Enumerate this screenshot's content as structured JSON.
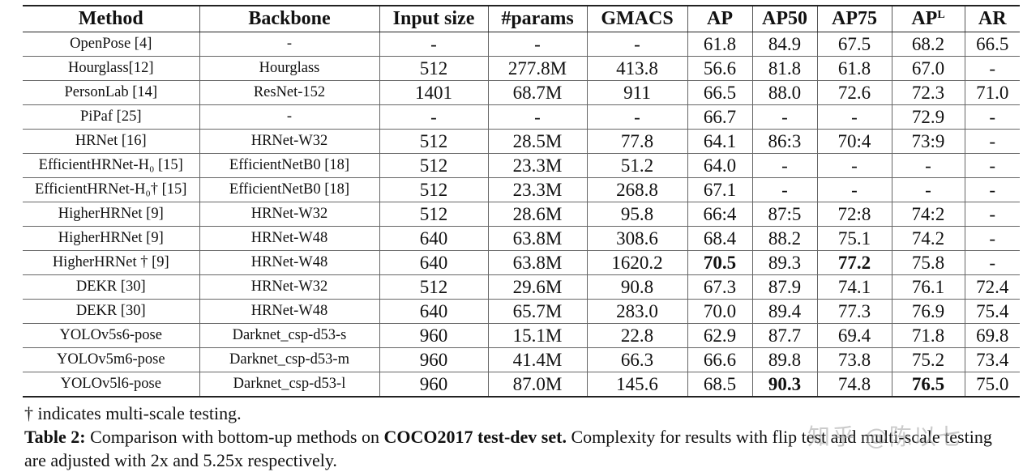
{
  "table": {
    "headers": [
      "Method",
      "Backbone",
      "Input size",
      "#params",
      "GMACS",
      "AP",
      "AP50",
      "AP75",
      "AP",
      "AR"
    ],
    "ap_l_superscript": "L",
    "rows": [
      {
        "cells": [
          "OpenPose [4]",
          "-",
          "-",
          "-",
          "-",
          "61.8",
          "84.9",
          "67.5",
          "68.2",
          "66.5"
        ],
        "bold": []
      },
      {
        "cells": [
          "Hourglass[12]",
          "Hourglass",
          "512",
          "277.8M",
          "413.8",
          "56.6",
          "81.8",
          "61.8",
          "67.0",
          "-"
        ],
        "bold": []
      },
      {
        "cells": [
          "PersonLab [14]",
          "ResNet-152",
          "1401",
          "68.7M",
          "911",
          "66.5",
          "88.0",
          "72.6",
          "72.3",
          "71.0"
        ],
        "bold": []
      },
      {
        "cells": [
          "PiPaf [25]",
          "-",
          "-",
          "-",
          "-",
          "66.7",
          "-",
          "-",
          "72.9",
          "-"
        ],
        "bold": []
      },
      {
        "cells": [
          "HRNet [16]",
          "HRNet-W32",
          "512",
          "28.5M",
          "77.8",
          "64.1",
          "86:3",
          "70:4",
          "73:9",
          "-"
        ],
        "bold": []
      },
      {
        "cells": [
          "EfficientHRNet-H₀ [15]",
          "EfficientNetB0 [18]",
          "512",
          "23.3M",
          "51.2",
          "64.0",
          "-",
          "-",
          "-",
          "-"
        ],
        "bold": []
      },
      {
        "cells": [
          "EfficientHRNet-H₀† [15]",
          "EfficientNetB0 [18]",
          "512",
          "23.3M",
          "268.8",
          "67.1",
          "-",
          "-",
          "-",
          "-"
        ],
        "bold": []
      },
      {
        "cells": [
          "HigherHRNet [9]",
          "HRNet-W32",
          "512",
          "28.6M",
          "95.8",
          "66:4",
          "87:5",
          "72:8",
          "74:2",
          "-"
        ],
        "bold": []
      },
      {
        "cells": [
          "HigherHRNet [9]",
          "HRNet-W48",
          "640",
          "63.8M",
          "308.6",
          "68.4",
          "88.2",
          "75.1",
          "74.2",
          "-"
        ],
        "bold": []
      },
      {
        "cells": [
          "HigherHRNet † [9]",
          "HRNet-W48",
          "640",
          "63.8M",
          "1620.2",
          "70.5",
          "89.3",
          "77.2",
          "75.8",
          "-"
        ],
        "bold": [
          5,
          7
        ]
      },
      {
        "cells": [
          "DEKR [30]",
          "HRNet-W32",
          "512",
          "29.6M",
          "90.8",
          "67.3",
          "87.9",
          "74.1",
          "76.1",
          "72.4"
        ],
        "bold": []
      },
      {
        "cells": [
          "DEKR [30]",
          "HRNet-W48",
          "640",
          "65.7M",
          "283.0",
          "70.0",
          "89.4",
          "77.3",
          "76.9",
          "75.4"
        ],
        "bold": []
      },
      {
        "cells": [
          "YOLOv5s6-pose",
          "Darknet_csp-d53-s",
          "960",
          "15.1M",
          "22.8",
          "62.9",
          "87.7",
          "69.4",
          "71.8",
          "69.8"
        ],
        "bold": []
      },
      {
        "cells": [
          "YOLOv5m6-pose",
          "Darknet_csp-d53-m",
          "960",
          "41.4M",
          "66.3",
          "66.6",
          "89.8",
          "73.8",
          "75.2",
          "73.4"
        ],
        "bold": []
      },
      {
        "cells": [
          "YOLOv5l6-pose",
          "Darknet_csp-d53-l",
          "960",
          "87.0M",
          "145.6",
          "68.5",
          "90.3",
          "74.8",
          "76.5",
          "75.0"
        ],
        "bold": [
          6,
          8
        ]
      }
    ]
  },
  "caption": {
    "footnote": "† indicates multi-scale testing.",
    "label": "Table 2:",
    "text_before": " Comparison with bottom-up methods on ",
    "highlight": "COCO2017 test-dev set.",
    "text_after": " Complexity for results with flip test and multi-scale testing are adjusted with 2x and 5.25x respectively."
  },
  "watermark": "知乎 @陈以七"
}
